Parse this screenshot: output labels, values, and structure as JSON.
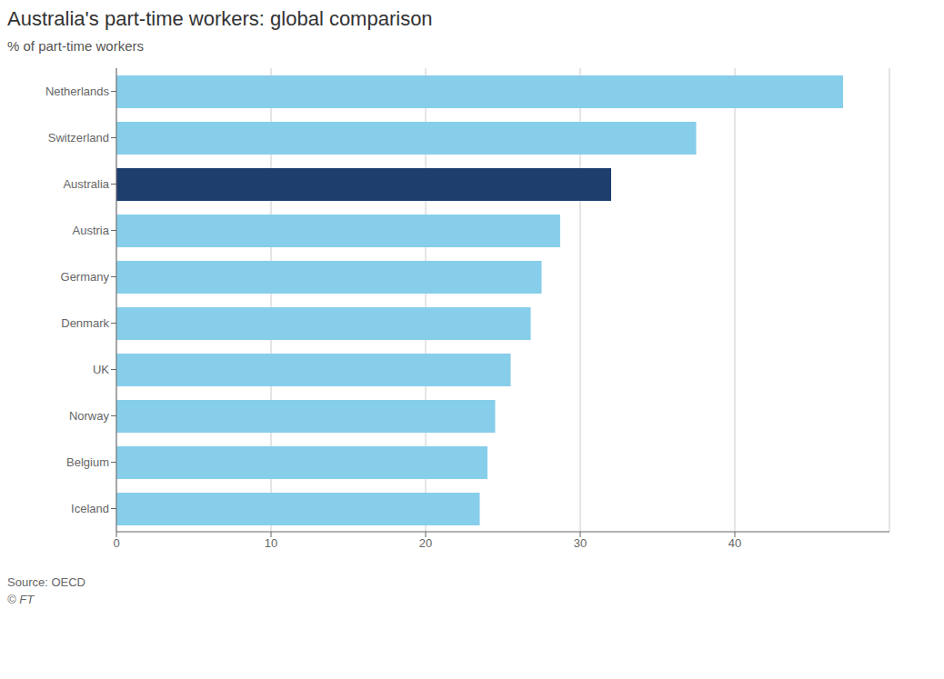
{
  "chart_data": {
    "type": "bar",
    "orientation": "horizontal",
    "title": "Australia's part-time workers: global comparison",
    "subtitle": "% of part-time workers",
    "annotations": [
      "Source: OECD",
      "© FT"
    ],
    "categories": [
      "Netherlands",
      "Switzerland",
      "Australia",
      "Austria",
      "Germany",
      "Denmark",
      "UK",
      "Norway",
      "Belgium",
      "Iceland"
    ],
    "values": [
      47.0,
      37.5,
      32.0,
      28.7,
      27.5,
      26.8,
      25.5,
      24.5,
      24.0,
      23.5
    ],
    "colors": [
      "#87CEEB",
      "#87CEEB",
      "#1e3f6e",
      "#87CEEB",
      "#87CEEB",
      "#87CEEB",
      "#87CEEB",
      "#87CEEB",
      "#87CEEB",
      "#87CEEB"
    ],
    "xlim": [
      0,
      50
    ],
    "xticks": [
      0,
      10,
      20,
      30,
      40
    ],
    "grid": true
  }
}
